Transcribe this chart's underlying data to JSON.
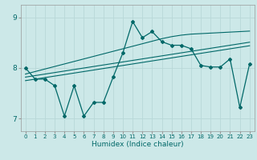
{
  "xlabel": "Humidex (Indice chaleur)",
  "background_color": "#cce8e8",
  "grid_color": "#b8d8d8",
  "line_color": "#006868",
  "x_values": [
    0,
    1,
    2,
    3,
    4,
    5,
    6,
    7,
    8,
    9,
    10,
    11,
    12,
    13,
    14,
    15,
    16,
    17,
    18,
    19,
    20,
    21,
    22,
    23
  ],
  "series1": [
    8.0,
    7.78,
    7.78,
    7.65,
    7.05,
    7.65,
    7.05,
    7.32,
    7.32,
    7.82,
    8.3,
    8.92,
    8.6,
    8.72,
    8.52,
    8.45,
    8.45,
    8.38,
    8.05,
    8.02,
    8.02,
    8.18,
    7.22,
    8.08
  ],
  "trend1": [
    7.75,
    7.78,
    7.81,
    7.84,
    7.87,
    7.9,
    7.93,
    7.96,
    7.99,
    8.02,
    8.05,
    8.08,
    8.11,
    8.14,
    8.17,
    8.2,
    8.23,
    8.26,
    8.29,
    8.32,
    8.35,
    8.38,
    8.41,
    8.44
  ],
  "trend2": [
    7.82,
    7.85,
    7.88,
    7.91,
    7.94,
    7.97,
    8.0,
    8.03,
    8.06,
    8.09,
    8.12,
    8.15,
    8.18,
    8.21,
    8.24,
    8.27,
    8.3,
    8.33,
    8.36,
    8.39,
    8.42,
    8.45,
    8.48,
    8.51
  ],
  "trend3": [
    7.88,
    7.93,
    7.98,
    8.03,
    8.08,
    8.13,
    8.18,
    8.23,
    8.28,
    8.33,
    8.38,
    8.43,
    8.48,
    8.53,
    8.58,
    8.62,
    8.65,
    8.67,
    8.68,
    8.69,
    8.7,
    8.71,
    8.72,
    8.73
  ],
  "ylim": [
    6.75,
    9.25
  ],
  "yticks": [
    7,
    8,
    9
  ],
  "xticks": [
    0,
    1,
    2,
    3,
    4,
    5,
    6,
    7,
    8,
    9,
    10,
    11,
    12,
    13,
    14,
    15,
    16,
    17,
    18,
    19,
    20,
    21,
    22,
    23
  ],
  "figsize": [
    3.2,
    2.0
  ],
  "dpi": 100
}
